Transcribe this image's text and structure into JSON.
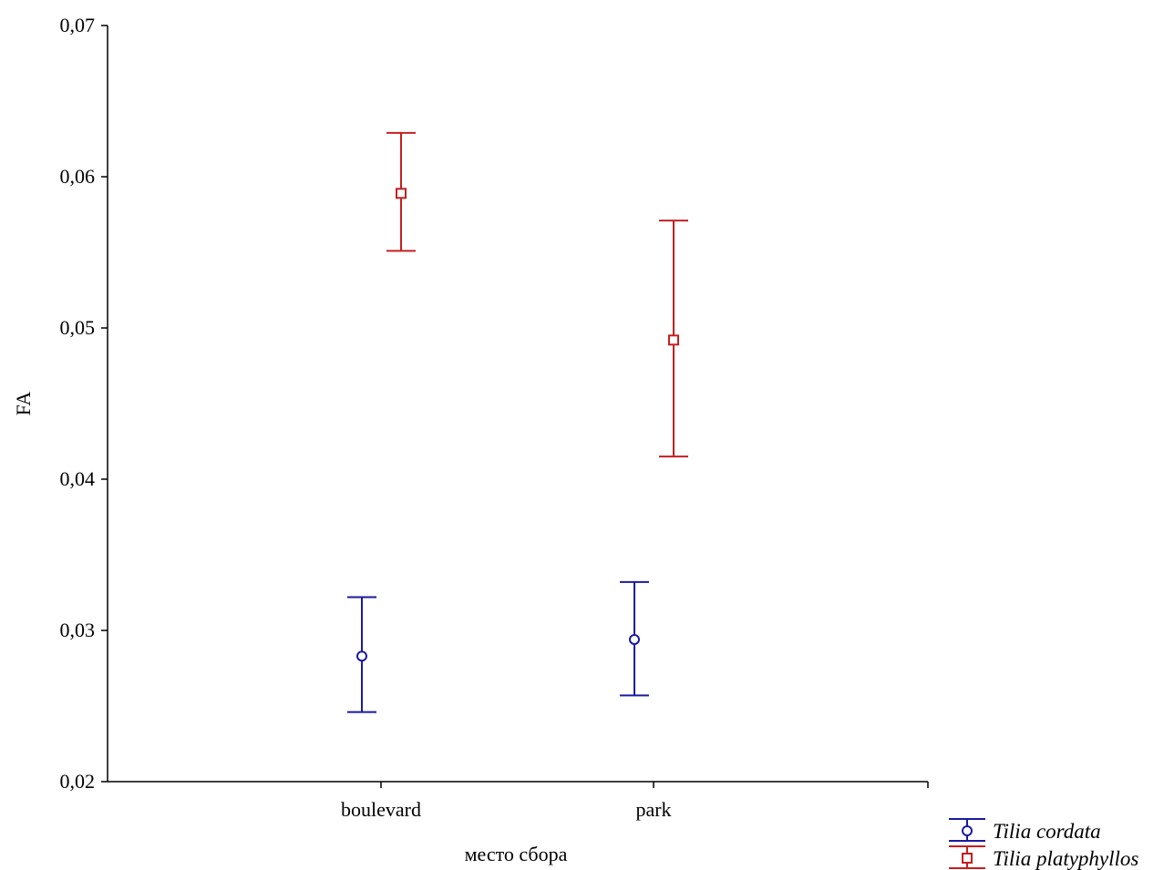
{
  "chart_data": {
    "type": "scatter",
    "subtype": "means-with-error-bars",
    "xlabel": "место сбора",
    "ylabel": "FA",
    "categories": [
      "boulevard",
      "park"
    ],
    "ylim": [
      0.02,
      0.07
    ],
    "yticks": [
      "0,02",
      "0,03",
      "0,04",
      "0,05",
      "0,06",
      "0,07"
    ],
    "grid": false,
    "legend_position": "bottom-right",
    "series": [
      {
        "name": "Tilia cordata",
        "marker": "circle",
        "color": "#1a1a9e",
        "values": [
          0.0283,
          0.0294
        ],
        "lower": [
          0.0246,
          0.0257
        ],
        "upper": [
          0.0322,
          0.0332
        ]
      },
      {
        "name": "Tilia platyphyllos",
        "marker": "square",
        "color": "#c42020",
        "values": [
          0.0589,
          0.0492
        ],
        "lower": [
          0.0551,
          0.0415
        ],
        "upper": [
          0.0629,
          0.0571
        ]
      }
    ]
  }
}
